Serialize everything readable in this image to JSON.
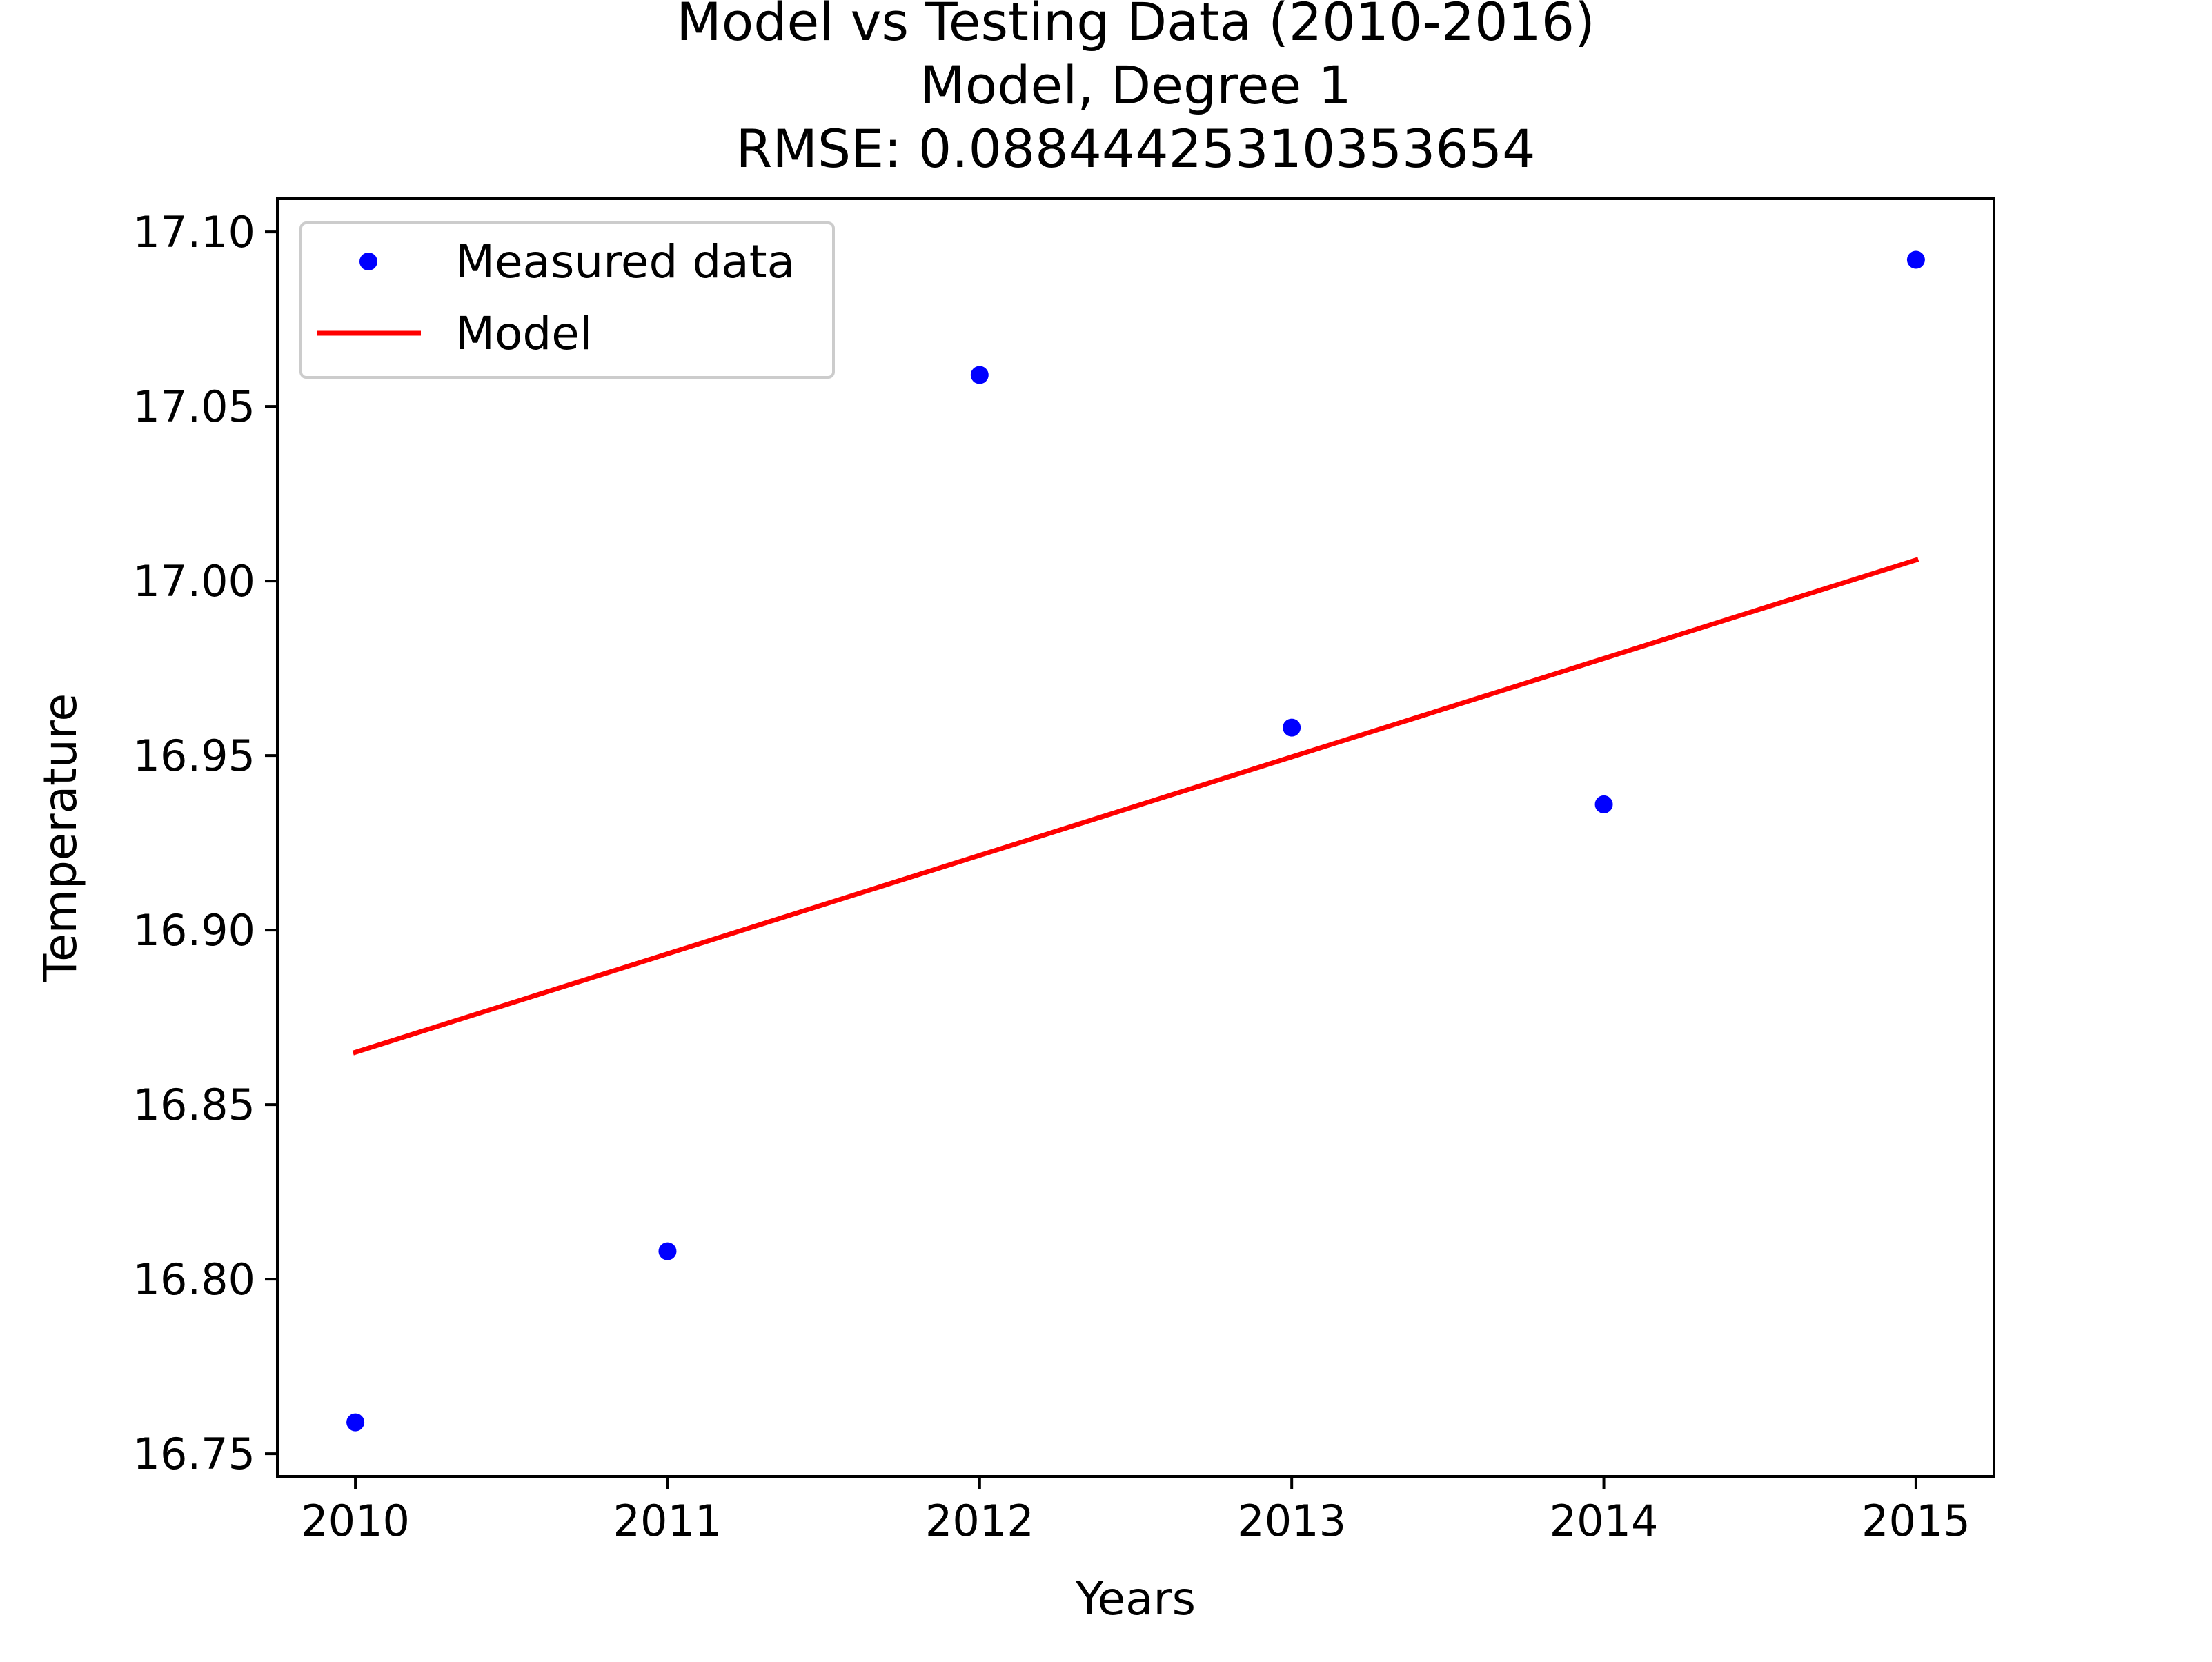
{
  "chart_data": {
    "type": "scatter",
    "title": [
      "Model vs Testing Data (2010-2016)",
      "Model, Degree 1",
      "RMSE: 0.08844425310353654"
    ],
    "xlabel": "Years",
    "ylabel": "Temperature",
    "xlim": [
      2009.75,
      2015.25
    ],
    "ylim": [
      16.7435,
      17.1095
    ],
    "xticks": [
      2010,
      2011,
      2012,
      2013,
      2014,
      2015
    ],
    "xtick_labels": [
      "2010",
      "2011",
      "2012",
      "2013",
      "2014",
      "2015"
    ],
    "yticks": [
      16.75,
      16.8,
      16.85,
      16.9,
      16.95,
      17.0,
      17.05,
      17.1
    ],
    "ytick_labels": [
      "16.75",
      "16.80",
      "16.85",
      "16.90",
      "16.95",
      "17.00",
      "17.05",
      "17.10"
    ],
    "grid": false,
    "legend_position": "top-left",
    "series": [
      {
        "name": "Measured data",
        "kind": "scatter",
        "color": "#0000ff",
        "x": [
          2010,
          2011,
          2012,
          2013,
          2014,
          2015
        ],
        "y": [
          16.759,
          16.808,
          17.059,
          16.958,
          16.936,
          17.092
        ]
      },
      {
        "name": "Model",
        "kind": "line",
        "color": "#ff0000",
        "x": [
          2010,
          2015
        ],
        "y": [
          16.865,
          17.006
        ]
      }
    ]
  }
}
